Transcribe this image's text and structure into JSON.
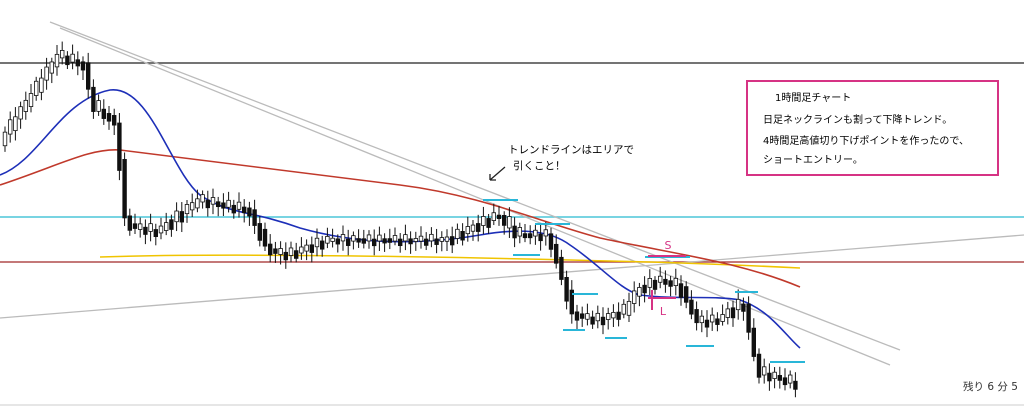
{
  "annotation_box": {
    "title": "1時間足チャート",
    "lines": [
      "日足ネックラインも割って下降トレンド。",
      "4時間足高値切り下げポイントを作ったので、",
      "ショートエントリー。"
    ]
  },
  "note": {
    "lines": [
      "トレンドラインはエリアで",
      "引くこと！"
    ]
  },
  "markers": {
    "short": "S",
    "long": "L"
  },
  "status": "残り 6 分 5"
}
